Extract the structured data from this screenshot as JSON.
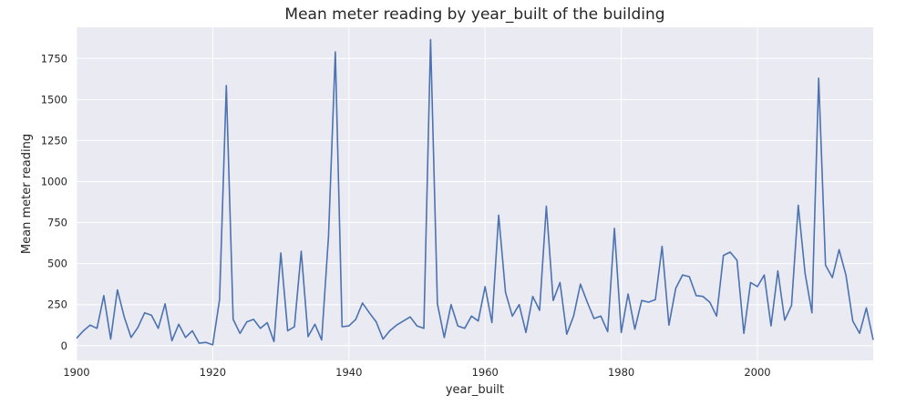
{
  "chart_data": {
    "type": "line",
    "title": "Mean meter reading by year_built of the building",
    "xlabel": "year_built",
    "ylabel": "Mean meter reading",
    "xlim": [
      1900,
      2017
    ],
    "ylim": [
      -90,
      1940
    ],
    "xticks": [
      1900,
      1920,
      1940,
      1960,
      1980,
      2000
    ],
    "yticks": [
      0,
      250,
      500,
      750,
      1000,
      1250,
      1500,
      1750
    ],
    "grid": true,
    "background": "#eaeaf2",
    "line_color": "#4c72b0",
    "series": [
      {
        "x": [
          1900,
          1901,
          1902,
          1903,
          1904,
          1905,
          1906,
          1907,
          1908,
          1909,
          1910,
          1911,
          1912,
          1913,
          1914,
          1915,
          1916,
          1917,
          1918,
          1919,
          1920,
          1921,
          1922,
          1923,
          1924,
          1925,
          1926,
          1927,
          1928,
          1929,
          1930,
          1931,
          1932,
          1933,
          1934,
          1935,
          1936,
          1937,
          1938,
          1939,
          1940,
          1941,
          1942,
          1943,
          1944,
          1945,
          1946,
          1947,
          1948,
          1949,
          1950,
          1951,
          1952,
          1953,
          1954,
          1955,
          1956,
          1957,
          1958,
          1959,
          1960,
          1961,
          1962,
          1963,
          1964,
          1965,
          1966,
          1967,
          1968,
          1969,
          1970,
          1971,
          1972,
          1973,
          1974,
          1975,
          1976,
          1977,
          1978,
          1979,
          1980,
          1981,
          1982,
          1983,
          1984,
          1985,
          1986,
          1987,
          1988,
          1989,
          1990,
          1991,
          1992,
          1993,
          1994,
          1995,
          1996,
          1997,
          1998,
          1999,
          2000,
          2001,
          2002,
          2003,
          2004,
          2005,
          2006,
          2007,
          2008,
          2009,
          2010,
          2011,
          2012,
          2013,
          2014,
          2015,
          2016,
          2017
        ],
        "values": [
          45,
          90,
          125,
          105,
          305,
          40,
          340,
          175,
          50,
          110,
          200,
          185,
          105,
          255,
          30,
          130,
          50,
          90,
          15,
          20,
          5,
          280,
          1585,
          160,
          75,
          145,
          160,
          105,
          140,
          25,
          565,
          90,
          115,
          575,
          55,
          130,
          35,
          665,
          1790,
          115,
          120,
          160,
          260,
          200,
          145,
          40,
          90,
          125,
          150,
          175,
          120,
          105,
          1865,
          255,
          50,
          250,
          120,
          105,
          180,
          150,
          360,
          140,
          795,
          325,
          180,
          250,
          80,
          300,
          215,
          850,
          275,
          385,
          70,
          180,
          375,
          265,
          165,
          180,
          85,
          715,
          80,
          315,
          100,
          275,
          265,
          280,
          605,
          125,
          350,
          430,
          420,
          305,
          300,
          265,
          180,
          550,
          570,
          520,
          75,
          385,
          360,
          430,
          120,
          455,
          155,
          245,
          855,
          440,
          200,
          1630,
          490,
          415,
          585,
          430,
          150,
          75,
          230,
          35
        ]
      }
    ]
  }
}
